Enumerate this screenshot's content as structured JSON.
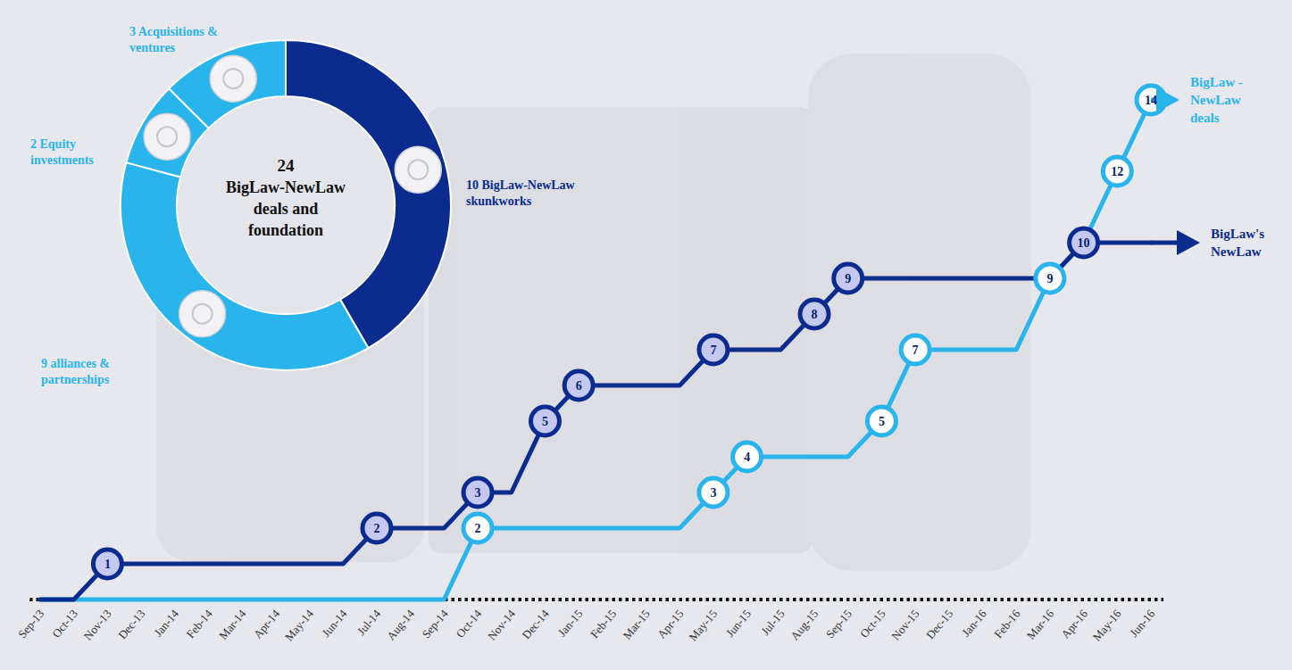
{
  "chart_data": [
    {
      "type": "donut",
      "title": "BigLaw-NewLaw deals and foundation",
      "total": 24,
      "categories": [
        "BigLaw-NewLaw skunkworks",
        "alliances & partnerships",
        "Equity investments",
        "Acquisitions & ventures"
      ],
      "values": [
        10,
        9,
        2,
        3
      ],
      "colors": [
        "#0b2b8f",
        "#29b4ec",
        "#29b4ec",
        "#29b4ec"
      ],
      "data_labels": true
    },
    {
      "type": "line",
      "categories": [
        "Sep-13",
        "Oct-13",
        "Nov-13",
        "Dec-13",
        "Jan-14",
        "Feb-14",
        "Mar-14",
        "Apr-14",
        "May-14",
        "Jun-14",
        "Jul-14",
        "Aug-14",
        "Sep-14",
        "Oct-14",
        "Nov-14",
        "Dec-14",
        "Jan-15",
        "Feb-15",
        "Mar-15",
        "Apr-15",
        "May-15",
        "Jun-15",
        "Jul-15",
        "Aug-15",
        "Sep-15",
        "Oct-15",
        "Nov-15",
        "Dec-15",
        "Jan-16",
        "Feb-16",
        "Mar-16",
        "Apr-16",
        "May-16",
        "Jun-16"
      ],
      "ylim": [
        0,
        14
      ],
      "tick_labels": "x",
      "grid": false,
      "data_labels": true,
      "marker": "circle",
      "series": [
        {
          "name": "BigLaw's NewLaw",
          "color": "#0b2b8f",
          "values": [
            0,
            0,
            1,
            1,
            1,
            1,
            1,
            1,
            1,
            1,
            2,
            2,
            2,
            3,
            3,
            5,
            6,
            6,
            6,
            6,
            7,
            7,
            7,
            8,
            9,
            9,
            9,
            9,
            9,
            9,
            9,
            10,
            10,
            10
          ],
          "value_labels": [
            null,
            null,
            "1",
            null,
            null,
            null,
            null,
            null,
            null,
            null,
            "2",
            null,
            null,
            "3",
            null,
            "5",
            "6",
            null,
            null,
            null,
            "7",
            null,
            null,
            "8",
            "9",
            null,
            null,
            null,
            null,
            null,
            null,
            "10",
            null,
            null
          ]
        },
        {
          "name": "BigLaw - NewLaw deals",
          "color": "#29b4ec",
          "values": [
            0,
            0,
            0,
            0,
            0,
            0,
            0,
            0,
            0,
            0,
            0,
            0,
            0,
            2,
            2,
            2,
            2,
            2,
            2,
            2,
            3,
            4,
            4,
            4,
            4,
            5,
            7,
            7,
            7,
            7,
            9,
            10,
            12,
            14
          ],
          "value_labels": [
            null,
            null,
            null,
            null,
            null,
            null,
            null,
            null,
            null,
            null,
            null,
            null,
            null,
            "2",
            null,
            null,
            null,
            null,
            null,
            null,
            "3",
            "4",
            null,
            null,
            null,
            "5",
            "7",
            null,
            null,
            null,
            "9",
            null,
            "12",
            "14"
          ]
        }
      ]
    }
  ]
}
